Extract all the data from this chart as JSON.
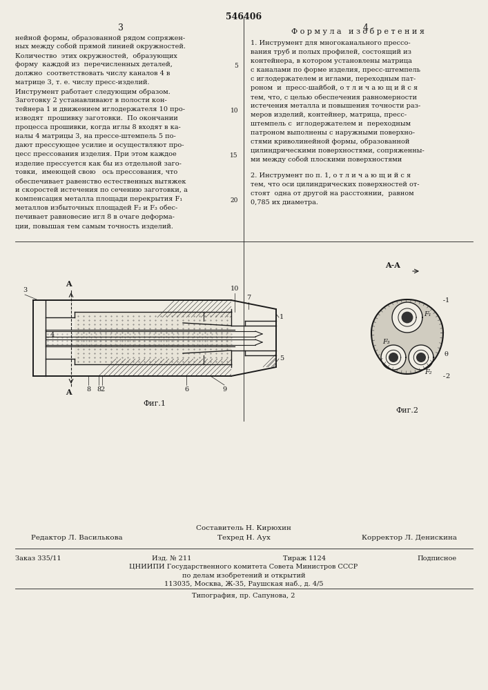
{
  "page_number": "546406",
  "col_left_number": "3",
  "col_right_number": "4",
  "background_color": "#f0ede4",
  "text_color": "#1a1a1a",
  "col_left_text": [
    "нейной формы, образованной рядом сопряжен-",
    "ных между собой прямой линией окружностей.",
    "Количество  этих окружностей,  образующих",
    "форму  каждой из  перечисленных деталей,",
    "должно  соответствовать числу каналов 4 в",
    "матрице 3, т. е. числу пресс-изделий.",
    "Инструмент работает следующим образом.",
    "Заготовку 2 устанавливают в полости кон-",
    "тейнера 1 и движением иглодержателя 10 про-",
    "изводят  прошивку заготовки.  По окончании",
    "процесса прошивки, когда иглы 8 входят в ка-",
    "налы 4 матрицы 3, на прессе-штемпель 5 по-",
    "дают прессующее усилие и осуществляют про-",
    "цесс прессования изделия. При этом каждое",
    "изделие прессуется как бы из отдельной заго-",
    "товки,  имеющей свою   ось прессования, что",
    "обеспечивает равенство естественных вытяжек",
    "и скоростей истечения по сечению заготовки, а",
    "компенсация металла площади перекрытия F₁",
    "металлов избыточных площадей F₂ и F₃ обес-",
    "печивает равновесие игл 8 в очаге деформа-",
    "ции, повышая тем самым точность изделий."
  ],
  "col_right_header": "Ф о р м у л а   и з о б р е т е н и я",
  "col_right_text_1": [
    "1. Инструмент для многоканального прессо-",
    "вания труб и полых профилей, состоящий из",
    "контейнера, в котором установлены матрица",
    "с каналами по форме изделия, пресс-штемпель",
    "с иглодержателем и иглами, переходным пат-",
    "роном  и  пресс-шайбой, о т л и ч а ю щ и й с я",
    "тем, что, с целью обеспечения равномерности",
    "истечения металла и повышения точности раз-",
    "меров изделий, контейнер, матрица, пресс-",
    "штемпель с  иглодержателем и  переходным",
    "патроном выполнены с наружными поверхно-",
    "стями криволинейной формы, образованной",
    "цилиндрическими поверхностями, сопряженны-",
    "ми между собой плоскими поверхностями"
  ],
  "col_right_text_2": [
    "2. Инструмент по п. 1, о т л и ч а ю щ и й с я",
    "тем, что оси цилиндрических поверхностей от-",
    "стоят  одна от другой на расстоянии,  равном",
    "0,785 их диаметра."
  ],
  "footer_composer": "Составитель Н. Кирюхин",
  "footer_editor": "Редактор Л. Василькова",
  "footer_techred": "Техред Н. Аух",
  "footer_corrector": "Корректор Л. Денискина",
  "footer_order": "Заказ 335/11",
  "footer_issue": "Изд. № 211",
  "footer_print": "Тираж 1124",
  "footer_signed": "Подписное",
  "footer_org": "ЦНИИПИ Государственного комитета Совета Министров СССР",
  "footer_dept": "по делам изобретений и открытий",
  "footer_addr": "113035, Москва, Ж-35, Раушская наб., д. 4/5",
  "footer_typo": "Типография, пр. Сапунова, 2",
  "fig1_label": "Фиг.1",
  "fig2_label": "Фиг.2",
  "aa_label": "A-A"
}
